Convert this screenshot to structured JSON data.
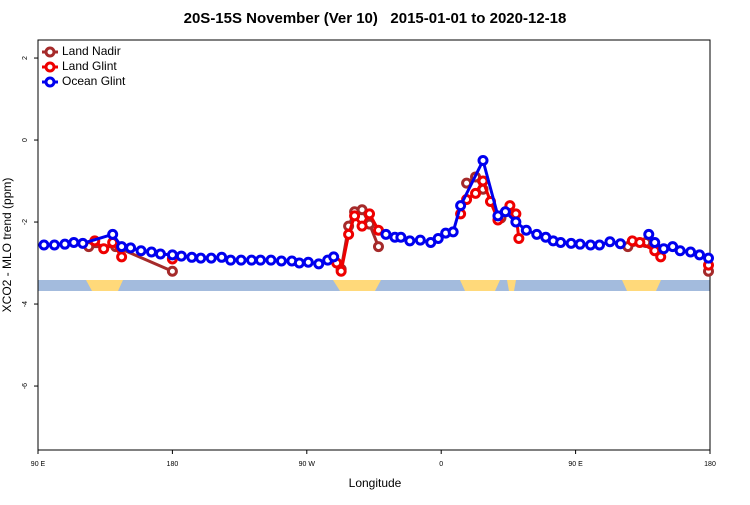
{
  "chart_data": {
    "type": "line",
    "title": "20S-15S November (Ver 10)   2015-01-01 to 2020-12-18",
    "xlabel": "Longitude",
    "ylabel": "XCO2 - MLO trend (ppm)",
    "xlim": [
      -270,
      180
    ],
    "xticks": [
      {
        "value": -270,
        "label": "90 E"
      },
      {
        "value": -180,
        "label": "180"
      },
      {
        "value": -90,
        "label": "90 W"
      },
      0,
      {
        "value": 90,
        "label": "90 E"
      },
      180
    ],
    "ylim": [
      -7.56,
      2.44
    ],
    "yticks": [
      2,
      0,
      -2,
      -4,
      -6
    ],
    "legend": "top-left",
    "series": [
      {
        "name": "Land Nadir",
        "color": "#a52a2a",
        "x": [
          -236,
          -218,
          -180,
          null,
          -67,
          -62,
          -58,
          -53,
          -48,
          -42,
          null,
          17,
          23,
          28,
          null,
          40,
          43,
          null,
          125,
          137,
          143,
          null,
          179
        ],
        "values": [
          -2.6,
          -2.6,
          -3.2,
          null,
          -3.15,
          -2.1,
          -1.75,
          -1.7,
          -2.05,
          -2.6,
          null,
          -1.05,
          -0.9,
          -1.2,
          null,
          -1.9,
          -1.75,
          null,
          -2.6,
          -2.5,
          -2.6,
          null,
          -3.2
        ]
      },
      {
        "name": "Land Glint",
        "color": "#ee0000",
        "x": [
          -232,
          -226,
          -220,
          -214,
          null,
          -180,
          null,
          -70,
          -67,
          -62,
          -58,
          -53,
          -48,
          -42,
          null,
          13,
          17,
          23,
          28,
          33,
          38,
          46,
          50,
          52,
          null,
          128,
          133,
          143,
          147,
          null,
          179
        ],
        "values": [
          -2.46,
          -2.65,
          -2.5,
          -2.85,
          null,
          -2.9,
          null,
          -3.0,
          -3.2,
          -2.3,
          -1.85,
          -2.1,
          -1.8,
          -2.2,
          null,
          -1.8,
          -1.45,
          -1.3,
          -1.0,
          -1.5,
          -1.95,
          -1.6,
          -1.8,
          -2.4,
          null,
          -2.46,
          -2.5,
          -2.7,
          -2.85,
          null,
          -3.05
        ]
      },
      {
        "name": "Ocean Glint",
        "color": "#0000ee",
        "x": [
          -266,
          -259,
          -252,
          -246,
          -240,
          -220,
          -214,
          -208,
          -201,
          -194,
          -188,
          -180,
          -174,
          -167,
          -161,
          -154,
          -147,
          -141,
          -134,
          -127,
          -121,
          -114,
          -107,
          -100,
          -95,
          -89,
          -82,
          -76,
          -72,
          null,
          -37,
          -31,
          -27,
          -21,
          -14,
          -7,
          -2,
          3,
          8,
          13,
          28,
          38,
          43,
          50,
          57,
          64,
          70,
          75,
          80,
          87,
          93,
          100,
          106,
          113,
          120,
          null,
          139,
          143,
          149,
          155,
          160,
          167,
          173,
          179
        ],
        "values": [
          -2.56,
          -2.56,
          -2.54,
          -2.5,
          -2.52,
          -2.3,
          -2.6,
          -2.63,
          -2.7,
          -2.73,
          -2.78,
          -2.8,
          -2.83,
          -2.86,
          -2.88,
          -2.88,
          -2.86,
          -2.93,
          -2.93,
          -2.93,
          -2.93,
          -2.93,
          -2.95,
          -2.95,
          -3.0,
          -2.98,
          -3.02,
          -2.93,
          -2.85,
          null,
          -2.3,
          -2.37,
          -2.37,
          -2.46,
          -2.44,
          -2.5,
          -2.4,
          -2.27,
          -2.24,
          -1.6,
          -0.5,
          -1.85,
          -1.75,
          -2.0,
          -2.2,
          -2.3,
          -2.37,
          -2.46,
          -2.5,
          -2.52,
          -2.54,
          -2.56,
          -2.56,
          -2.48,
          -2.53,
          null,
          -2.3,
          -2.5,
          -2.65,
          -2.6,
          -2.7,
          -2.73,
          -2.8,
          -2.88
        ]
      }
    ]
  }
}
